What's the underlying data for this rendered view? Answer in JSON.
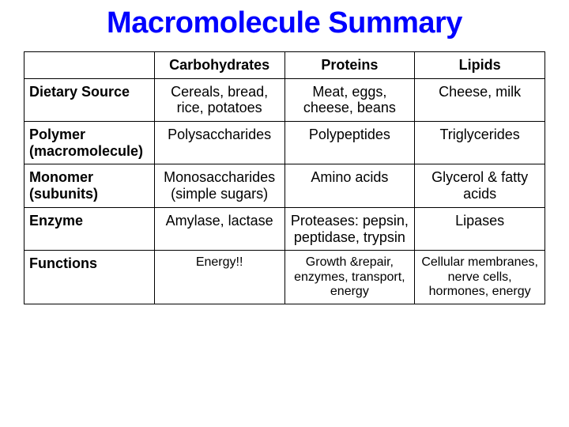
{
  "title": "Macromolecule Summary",
  "table": {
    "columns": [
      "Carbohydrates",
      "Proteins",
      "Lipids"
    ],
    "column_widths_pct": [
      25,
      25,
      25,
      25
    ],
    "border_color": "#000000",
    "title_color": "#0000ff",
    "text_color": "#000000",
    "background_color": "#ffffff",
    "header_fontweight": "bold",
    "cell_fontsize": 18,
    "small_fontsize": 16,
    "rows": [
      {
        "label": "Dietary Source",
        "cells": [
          "Cereals, bread, rice, potatoes",
          "Meat, eggs, cheese, beans",
          "Cheese, milk"
        ]
      },
      {
        "label": "Polymer (macromolecule)",
        "cells": [
          "Polysaccharides",
          "Polypeptides",
          "Triglycerides"
        ]
      },
      {
        "label": "Monomer (subunits)",
        "cells": [
          "Monosaccharides (simple sugars)",
          "Amino acids",
          "Glycerol & fatty acids"
        ]
      },
      {
        "label": "Enzyme",
        "cells": [
          "Amylase, lactase",
          "Proteases: pepsin, peptidase, trypsin",
          "Lipases"
        ]
      },
      {
        "label": "Functions",
        "small": true,
        "cells": [
          "Energy!!",
          "Growth &repair, enzymes, transport, energy",
          "Cellular membranes, nerve cells, hormones, energy"
        ]
      }
    ]
  }
}
